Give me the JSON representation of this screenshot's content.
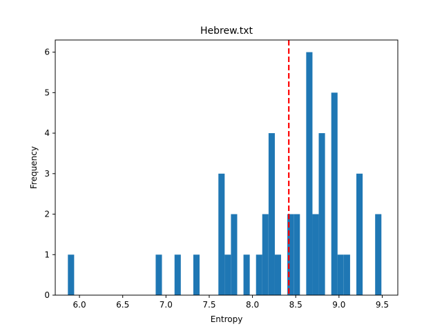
{
  "chart_data": {
    "type": "bar",
    "title": "Hebrew.txt",
    "xlabel": "Entropy",
    "ylabel": "Frequency",
    "xlim": [
      5.72,
      9.68
    ],
    "ylim": [
      0,
      6.3
    ],
    "xticks": [
      "6.0",
      "6.5",
      "7.0",
      "7.5",
      "8.0",
      "8.5",
      "9.0",
      "9.5"
    ],
    "yticks": [
      "0",
      "1",
      "2",
      "3",
      "4",
      "5",
      "6"
    ],
    "bin_width": 0.0725,
    "bins": [
      {
        "start": 5.866,
        "count": 1
      },
      {
        "start": 6.881,
        "count": 1
      },
      {
        "start": 7.099,
        "count": 1
      },
      {
        "start": 7.316,
        "count": 1
      },
      {
        "start": 7.606,
        "count": 3
      },
      {
        "start": 7.678,
        "count": 1
      },
      {
        "start": 7.751,
        "count": 2
      },
      {
        "start": 7.896,
        "count": 1
      },
      {
        "start": 8.041,
        "count": 1
      },
      {
        "start": 8.113,
        "count": 2
      },
      {
        "start": 8.186,
        "count": 4
      },
      {
        "start": 8.258,
        "count": 1
      },
      {
        "start": 8.403,
        "count": 2
      },
      {
        "start": 8.476,
        "count": 2
      },
      {
        "start": 8.621,
        "count": 6
      },
      {
        "start": 8.693,
        "count": 2
      },
      {
        "start": 8.766,
        "count": 4
      },
      {
        "start": 8.911,
        "count": 5
      },
      {
        "start": 8.983,
        "count": 1
      },
      {
        "start": 9.056,
        "count": 1
      },
      {
        "start": 9.201,
        "count": 3
      },
      {
        "start": 9.418,
        "count": 2
      }
    ],
    "mean_line": {
      "x": 8.42,
      "style": "dashed",
      "color": "#ff0000"
    },
    "bar_color": "#1f77b4",
    "grid": false,
    "legend": "none"
  }
}
